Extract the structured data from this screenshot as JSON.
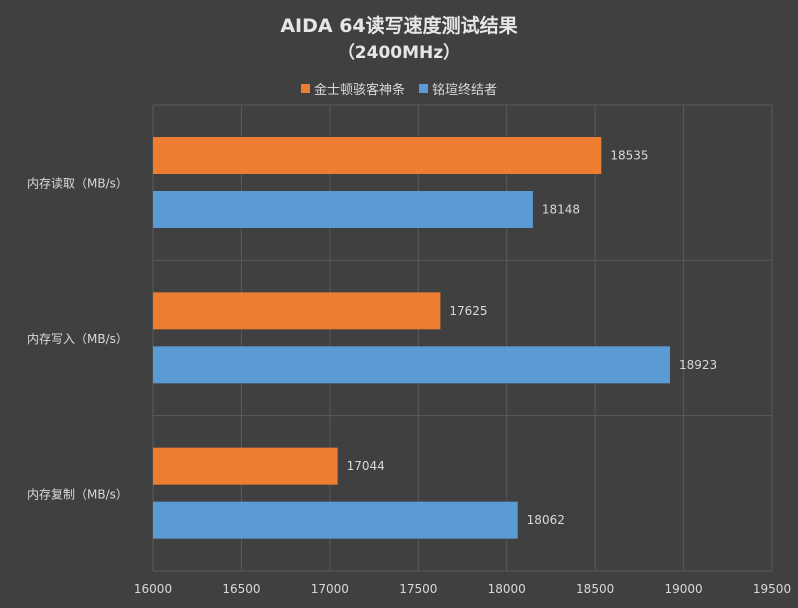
{
  "chart_data": {
    "type": "bar",
    "orientation": "horizontal",
    "title": "AIDA 64读写速度测试结果",
    "subtitle": "（2400MHz）",
    "categories": [
      "内存读取（MB/s）",
      "内存写入（MB/s）",
      "内存复制（MB/s）"
    ],
    "series": [
      {
        "name": "金士顿骇客神条",
        "color": "#ED7D31",
        "values": [
          18535,
          17625,
          17044
        ]
      },
      {
        "name": "铭瑄终结者",
        "color": "#5B9BD5",
        "values": [
          18148,
          18923,
          18062
        ]
      }
    ],
    "xlim": [
      16000,
      19500
    ],
    "xticks": [
      "16000",
      "16500",
      "17000",
      "17500",
      "18000",
      "18500",
      "19000",
      "19500"
    ],
    "grid": true,
    "legend_position": "top"
  }
}
